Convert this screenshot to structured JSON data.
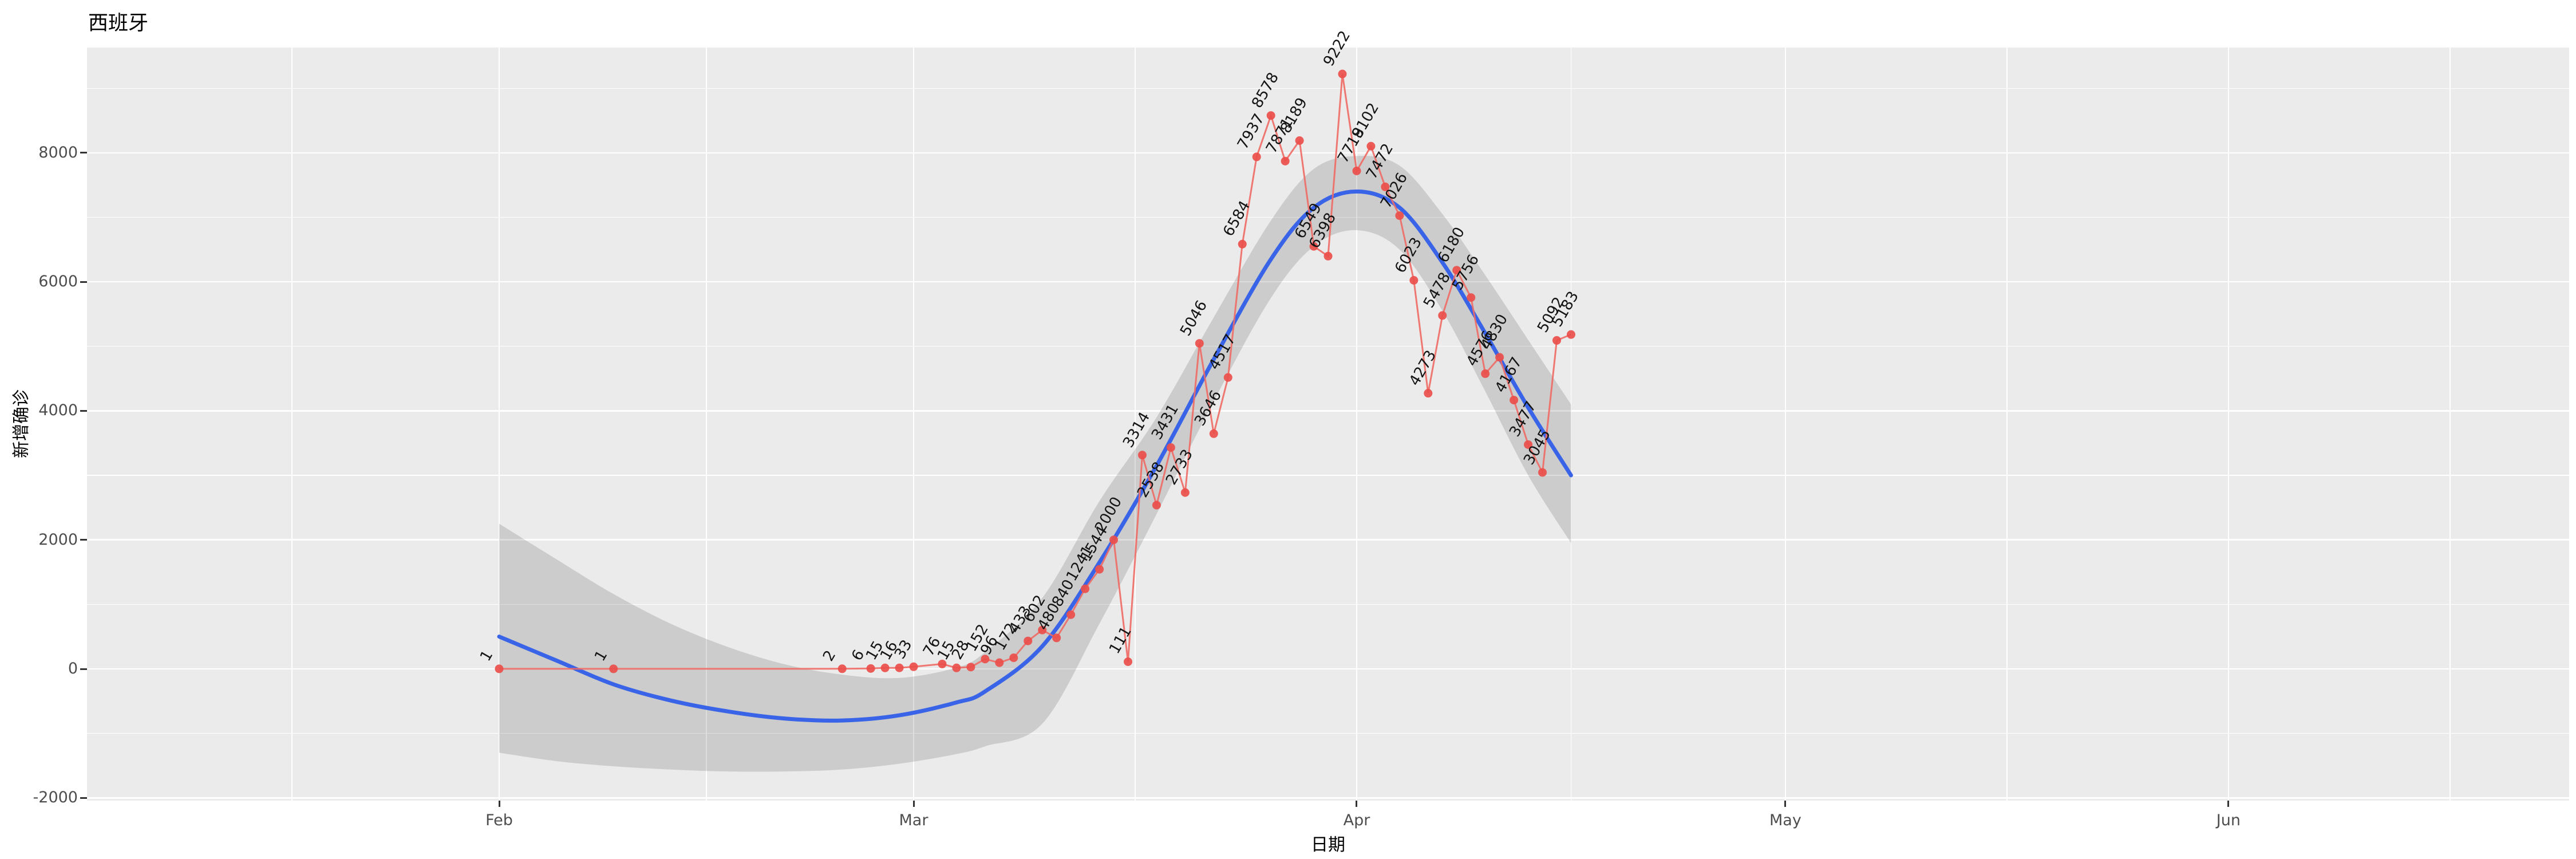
{
  "title": "西班牙",
  "axes": {
    "x_label": "日期",
    "y_label": "新增确诊",
    "x_ticks": [
      {
        "label": "Feb",
        "day": 0
      },
      {
        "label": "Mar",
        "day": 29
      },
      {
        "label": "Apr",
        "day": 60
      },
      {
        "label": "May",
        "day": 90
      },
      {
        "label": "Jun",
        "day": 121
      }
    ],
    "x_minor_days": [
      -14.5,
      14.5,
      44.5,
      75,
      105.5,
      136.5
    ],
    "y_ticks": [
      -2000,
      0,
      2000,
      4000,
      6000,
      8000
    ],
    "y_minor": [
      -1000,
      1000,
      3000,
      5000,
      7000,
      9000
    ]
  },
  "chart_data": {
    "type": "line",
    "title": "西班牙",
    "xlabel": "日期",
    "ylabel": "新增确诊",
    "x_axis_months": [
      "Feb",
      "Mar",
      "Apr",
      "May",
      "Jun"
    ],
    "ylim": [
      -2200,
      9650
    ],
    "grid": "on",
    "legend": "none",
    "series": [
      {
        "name": "daily-new-confirmed",
        "style": "points+line+labels",
        "points": [
          {
            "date": "Feb 01",
            "day": 0,
            "value": 1
          },
          {
            "date": "Feb 09",
            "day": 8,
            "value": 1
          },
          {
            "date": "Feb 25",
            "day": 24,
            "value": 2
          },
          {
            "date": "Feb 27",
            "day": 26,
            "value": 6
          },
          {
            "date": "Feb 28",
            "day": 27,
            "value": 15
          },
          {
            "date": "Feb 29",
            "day": 28,
            "value": 16
          },
          {
            "date": "Mar 01",
            "day": 29,
            "value": 33
          },
          {
            "date": "Mar 03",
            "day": 31,
            "value": 76
          },
          {
            "date": "Mar 04",
            "day": 32,
            "value": 15
          },
          {
            "date": "Mar 05",
            "day": 33,
            "value": 28
          },
          {
            "date": "Mar 06",
            "day": 34,
            "value": 152
          },
          {
            "date": "Mar 07",
            "day": 35,
            "value": 96
          },
          {
            "date": "Mar 08",
            "day": 36,
            "value": 172
          },
          {
            "date": "Mar 09",
            "day": 37,
            "value": 433
          },
          {
            "date": "Mar 10",
            "day": 38,
            "value": 602
          },
          {
            "date": "Mar 11",
            "day": 39,
            "value": 480
          },
          {
            "date": "Mar 12",
            "day": 40,
            "value": 840
          },
          {
            "date": "Mar 13",
            "day": 41,
            "value": 1241
          },
          {
            "date": "Mar 14",
            "day": 42,
            "value": 1544
          },
          {
            "date": "Mar 15",
            "day": 43,
            "value": 2000
          },
          {
            "date": "Mar 16",
            "day": 44,
            "value": 111
          },
          {
            "date": "Mar 17",
            "day": 45,
            "value": 3314
          },
          {
            "date": "Mar 18",
            "day": 46,
            "value": 2538
          },
          {
            "date": "Mar 19",
            "day": 47,
            "value": 3431
          },
          {
            "date": "Mar 20",
            "day": 48,
            "value": 2733
          },
          {
            "date": "Mar 21",
            "day": 49,
            "value": 5046
          },
          {
            "date": "Mar 22",
            "day": 50,
            "value": 3646
          },
          {
            "date": "Mar 23",
            "day": 51,
            "value": 4517
          },
          {
            "date": "Mar 24",
            "day": 52,
            "value": 6584
          },
          {
            "date": "Mar 25",
            "day": 53,
            "value": 7937
          },
          {
            "date": "Mar 26",
            "day": 54,
            "value": 8578
          },
          {
            "date": "Mar 27",
            "day": 55,
            "value": 7871
          },
          {
            "date": "Mar 28",
            "day": 56,
            "value": 8189
          },
          {
            "date": "Mar 29",
            "day": 57,
            "value": 6549
          },
          {
            "date": "Mar 30",
            "day": 58,
            "value": 6398
          },
          {
            "date": "Mar 31",
            "day": 59,
            "value": 9222
          },
          {
            "date": "Apr 01",
            "day": 60,
            "value": 7719
          },
          {
            "date": "Apr 02",
            "day": 61,
            "value": 8102
          },
          {
            "date": "Apr 03",
            "day": 62,
            "value": 7472
          },
          {
            "date": "Apr 04",
            "day": 63,
            "value": 7026
          },
          {
            "date": "Apr 05",
            "day": 64,
            "value": 6023
          },
          {
            "date": "Apr 06",
            "day": 65,
            "value": 4273
          },
          {
            "date": "Apr 07",
            "day": 66,
            "value": 5478
          },
          {
            "date": "Apr 08",
            "day": 67,
            "value": 6180
          },
          {
            "date": "Apr 09",
            "day": 68,
            "value": 5756
          },
          {
            "date": "Apr 10",
            "day": 69,
            "value": 4576
          },
          {
            "date": "Apr 11",
            "day": 70,
            "value": 4830
          },
          {
            "date": "Apr 12",
            "day": 71,
            "value": 4167
          },
          {
            "date": "Apr 13",
            "day": 72,
            "value": 3477
          },
          {
            "date": "Apr 14",
            "day": 73,
            "value": 3045
          },
          {
            "date": "Apr 15",
            "day": 74,
            "value": 5092
          },
          {
            "date": "Apr 16",
            "day": 75,
            "value": 5183
          }
        ]
      }
    ],
    "smooth": {
      "name": "loess-fit-with-ci",
      "points": [
        {
          "day": 0,
          "fit": 500,
          "lower": -1300,
          "upper": 2250
        },
        {
          "day": 4,
          "fit": 130,
          "lower": -1430,
          "upper": 1700
        },
        {
          "day": 8,
          "fit": -240,
          "lower": -1510,
          "upper": 1160
        },
        {
          "day": 12,
          "fit": -490,
          "lower": -1560,
          "upper": 700
        },
        {
          "day": 16,
          "fit": -660,
          "lower": -1590,
          "upper": 340
        },
        {
          "day": 20,
          "fit": -770,
          "lower": -1590,
          "upper": 70
        },
        {
          "day": 24,
          "fit": -800,
          "lower": -1560,
          "upper": -90
        },
        {
          "day": 28,
          "fit": -720,
          "lower": -1470,
          "upper": -140
        },
        {
          "day": 32,
          "fit": -520,
          "lower": -1320,
          "upper": 20
        },
        {
          "day": 34,
          "fit": -350,
          "lower": -1200,
          "upper": 260
        },
        {
          "day": 38,
          "fit": 350,
          "lower": -850,
          "upper": 1100
        },
        {
          "day": 42,
          "fit": 1650,
          "lower": 700,
          "upper": 2600
        },
        {
          "day": 46,
          "fit": 3150,
          "lower": 2400,
          "upper": 3900
        },
        {
          "day": 50,
          "fit": 4800,
          "lower": 4150,
          "upper": 5450
        },
        {
          "day": 54,
          "fit": 6350,
          "lower": 5750,
          "upper": 6950
        },
        {
          "day": 57,
          "fit": 7150,
          "lower": 6550,
          "upper": 7750
        },
        {
          "day": 60,
          "fit": 7400,
          "lower": 6800,
          "upper": 7950
        },
        {
          "day": 63,
          "fit": 7150,
          "lower": 6500,
          "upper": 7800
        },
        {
          "day": 66,
          "fit": 6300,
          "lower": 5550,
          "upper": 7050
        },
        {
          "day": 69,
          "fit": 5200,
          "lower": 4300,
          "upper": 6100
        },
        {
          "day": 72,
          "fit": 4050,
          "lower": 3000,
          "upper": 5100
        },
        {
          "day": 75,
          "fit": 3000,
          "lower": 1950,
          "upper": 4100
        }
      ]
    }
  },
  "colors": {
    "panel_bg": "#EBEBEB",
    "grid": "#FFFFFF",
    "series_line": "#F06A65",
    "series_point": "#EA4F4B",
    "smooth_line": "#3964E8",
    "ribbon_fill": "rgba(45,45,45,0.16)",
    "tick_text": "#4D4D4D",
    "label_text": "#141414",
    "title_text": "#000000"
  }
}
